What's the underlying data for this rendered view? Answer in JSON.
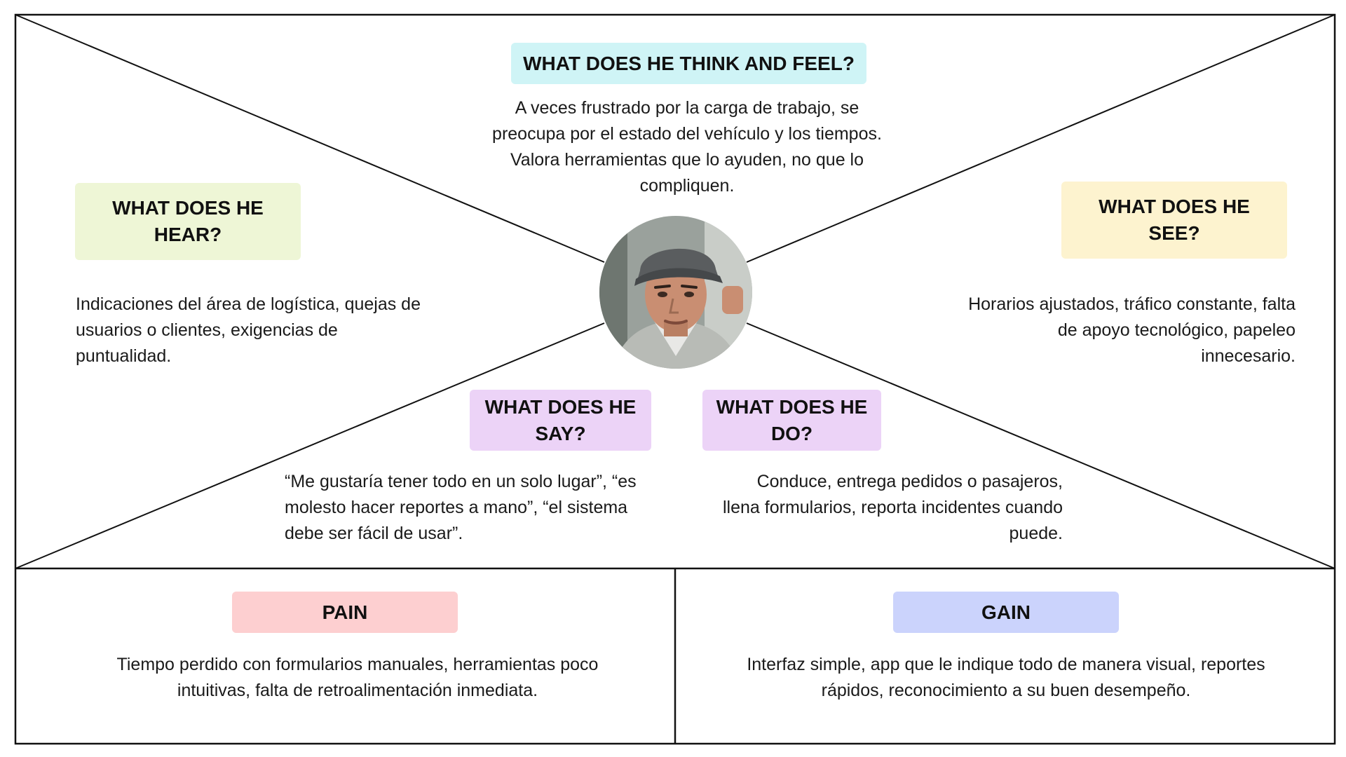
{
  "colors": {
    "think": "#cff4f6",
    "hear": "#eef6d6",
    "see": "#fdf3cf",
    "say": "#ecd3f7",
    "do": "#ecd3f7",
    "pain": "#fdcfd0",
    "gain": "#cbd3fc",
    "line": "#111111"
  },
  "avatar": {
    "icon": "person-portrait"
  },
  "think": {
    "title": "WHAT DOES HE THINK AND FEEL?",
    "body": "A veces frustrado por la carga de trabajo, se preocupa por el estado del vehículo y los tiempos. Valora herramientas que lo ayuden, no que lo compliquen."
  },
  "hear": {
    "title": "WHAT DOES HE HEAR?",
    "body": "Indicaciones del área de logística, quejas de usuarios o clientes, exigencias de puntualidad."
  },
  "see": {
    "title": "WHAT DOES HE SEE?",
    "body": "Horarios ajustados, tráfico constante, falta de apoyo tecnológico, papeleo innecesario."
  },
  "say": {
    "title": "WHAT DOES HE SAY?",
    "body": "“Me gustaría tener todo en un solo lugar”, “es molesto hacer reportes a mano”, “el sistema debe ser fácil de usar”."
  },
  "do": {
    "title": "WHAT DOES HE DO?",
    "body": "Conduce, entrega pedidos o pasajeros, llena formularios, reporta incidentes cuando puede."
  },
  "pain": {
    "title": "PAIN",
    "body": "Tiempo perdido con formularios manuales, herramientas poco intuitivas, falta de retroalimentación inmediata."
  },
  "gain": {
    "title": "GAIN",
    "body": "Interfaz simple, app que le indique todo de manera visual, reportes rápidos, reconocimiento a su buen desempeño."
  }
}
